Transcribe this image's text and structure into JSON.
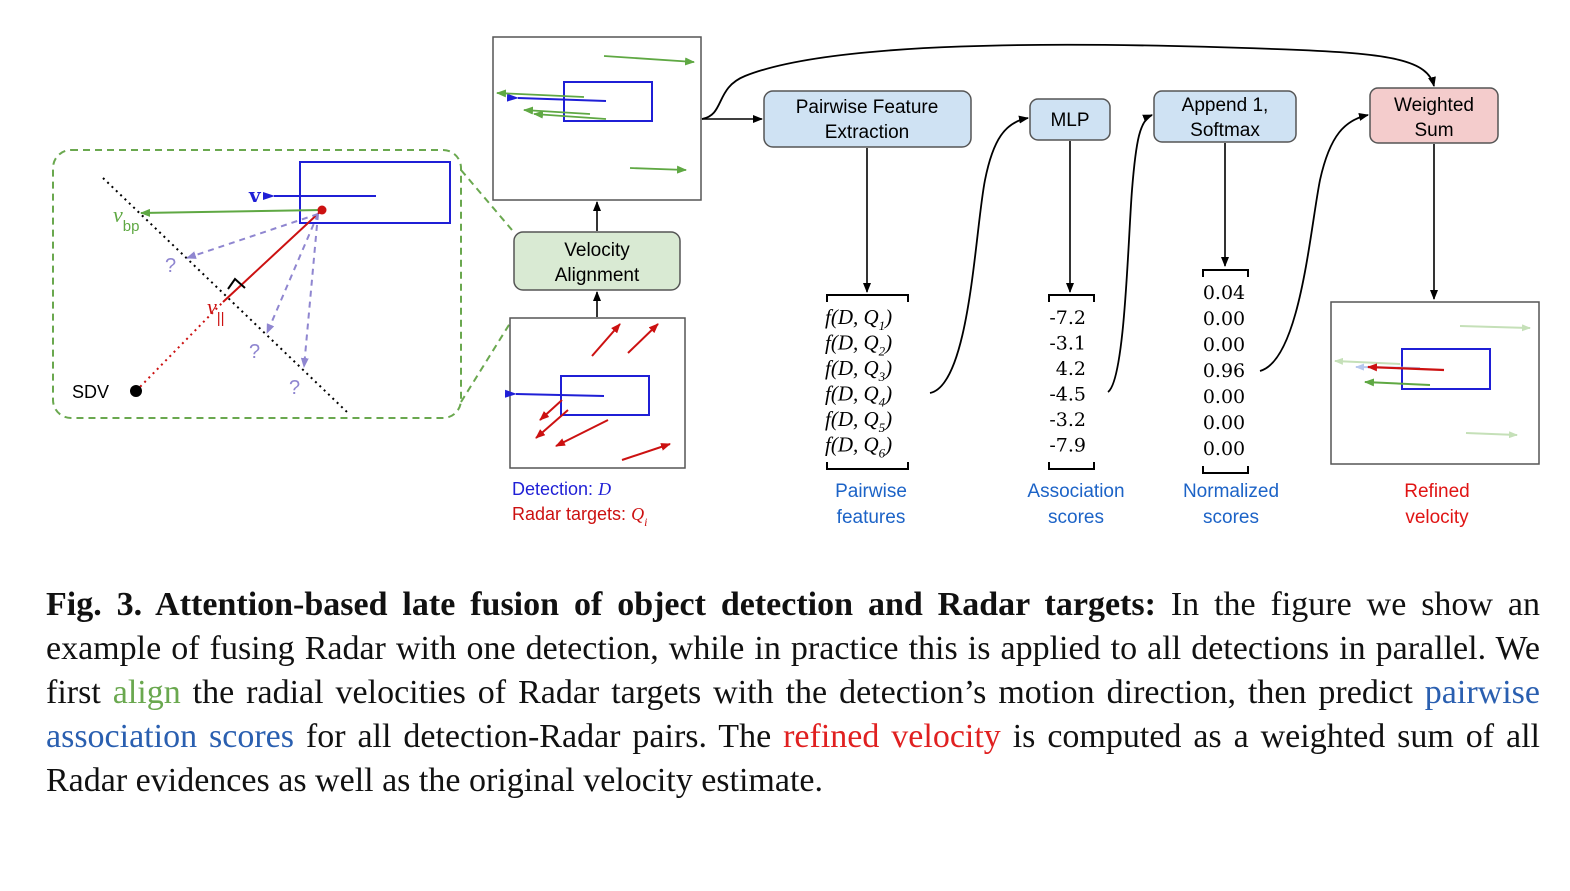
{
  "figure": {
    "sdv_label": "SDV",
    "v_label": "v",
    "vbp_main": "v",
    "vbp_sub": "bp",
    "vpar_main": "v",
    "vpar_sub": "||",
    "unknown_mark": "?",
    "velocity_alignment": [
      "Velocity",
      "Alignment"
    ],
    "pairwise_feature_extraction": [
      "Pairwise Feature",
      "Extraction"
    ],
    "mlp": "MLP",
    "append_softmax": [
      "Append 1,",
      "Softmax"
    ],
    "weighted_sum": [
      "Weighted",
      "Sum"
    ],
    "legend_detection": "Detection:",
    "legend_detection_sym": "D",
    "legend_radar": "Radar targets:",
    "legend_radar_sym": "Q",
    "legend_radar_sub": "i",
    "pairwise_functions": [
      {
        "f": "f(D, Q",
        "i": "1",
        "close": ")"
      },
      {
        "f": "f(D, Q",
        "i": "2",
        "close": ")"
      },
      {
        "f": "f(D, Q",
        "i": "3",
        "close": ")"
      },
      {
        "f": "f(D, Q",
        "i": "4",
        "close": ")"
      },
      {
        "f": "f(D, Q",
        "i": "5",
        "close": ")"
      },
      {
        "f": "f(D, Q",
        "i": "6",
        "close": ")"
      }
    ],
    "association_scores": [
      "-7.2",
      "-3.1",
      "4.2",
      "-4.5",
      "-3.2",
      "-7.9"
    ],
    "normalized_scores": [
      "0.04",
      "0.00",
      "0.00",
      "0.96",
      "0.00",
      "0.00",
      "0.00"
    ],
    "label_pairwise": [
      "Pairwise",
      "features"
    ],
    "label_association": [
      "Association",
      "scores"
    ],
    "label_normalized": [
      "Normalized",
      "scores"
    ],
    "label_refined": [
      "Refined",
      "velocity"
    ],
    "colors": {
      "detection_blue": "#1f1fd6",
      "radar_red": "#cc1111",
      "green_arrow": "#5fa843",
      "lavender": "#8f86d0",
      "box_blue_fill": "#cfe2f3",
      "box_green_fill": "#d9ead3",
      "box_red_fill": "#f4cccc",
      "label_blue": "#1c63c7",
      "label_red": "#e01414"
    }
  },
  "caption": {
    "label": "Fig. 3. Attention-based late fusion of object detection and Radar targets:",
    "t1": " In the figure we show an example of fusing Radar with one detection, while in practice this is applied to all detections in parallel. We first ",
    "h1": "align",
    "t2": " the radial velocities of Radar targets with the detection’s motion direction, then predict ",
    "h2": "pairwise association scores",
    "t3": " for all detection-Radar pairs. The ",
    "h3": "refined velocity",
    "t4": " is computed as a weighted sum of all Radar evidences as well as the original velocity estimate."
  }
}
